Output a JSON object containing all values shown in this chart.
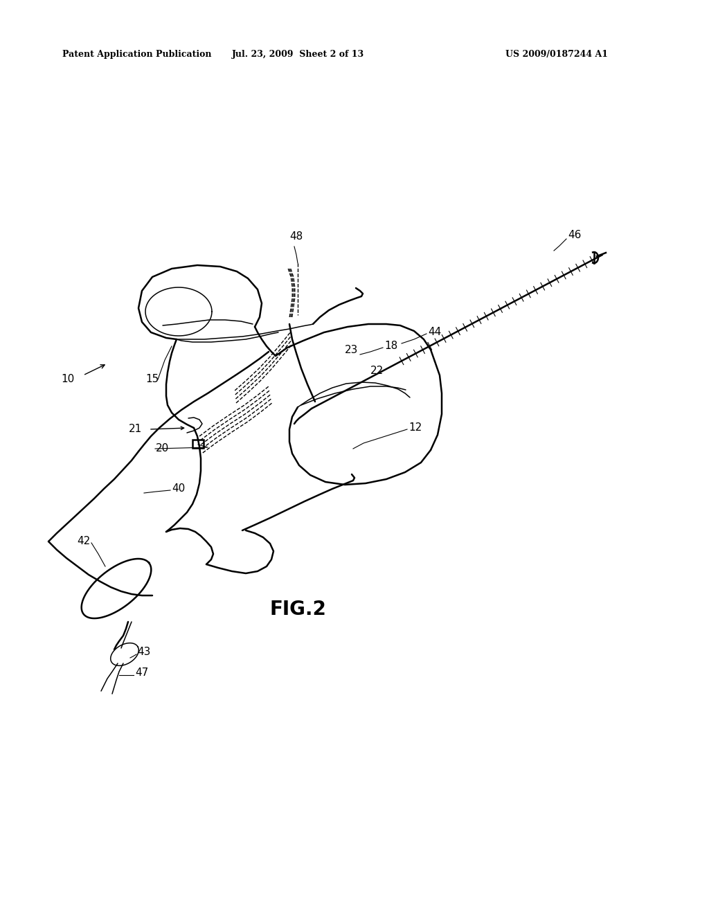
{
  "background_color": "#ffffff",
  "header_left": "Patent Application Publication",
  "header_mid": "Jul. 23, 2009  Sheet 2 of 13",
  "header_right": "US 2009/0187244 A1",
  "figure_label": "FIG.2",
  "line_color": "#000000",
  "lw_main": 1.8,
  "lw_thin": 1.1,
  "lw_dash": 1.0,
  "label_fontsize": 11
}
